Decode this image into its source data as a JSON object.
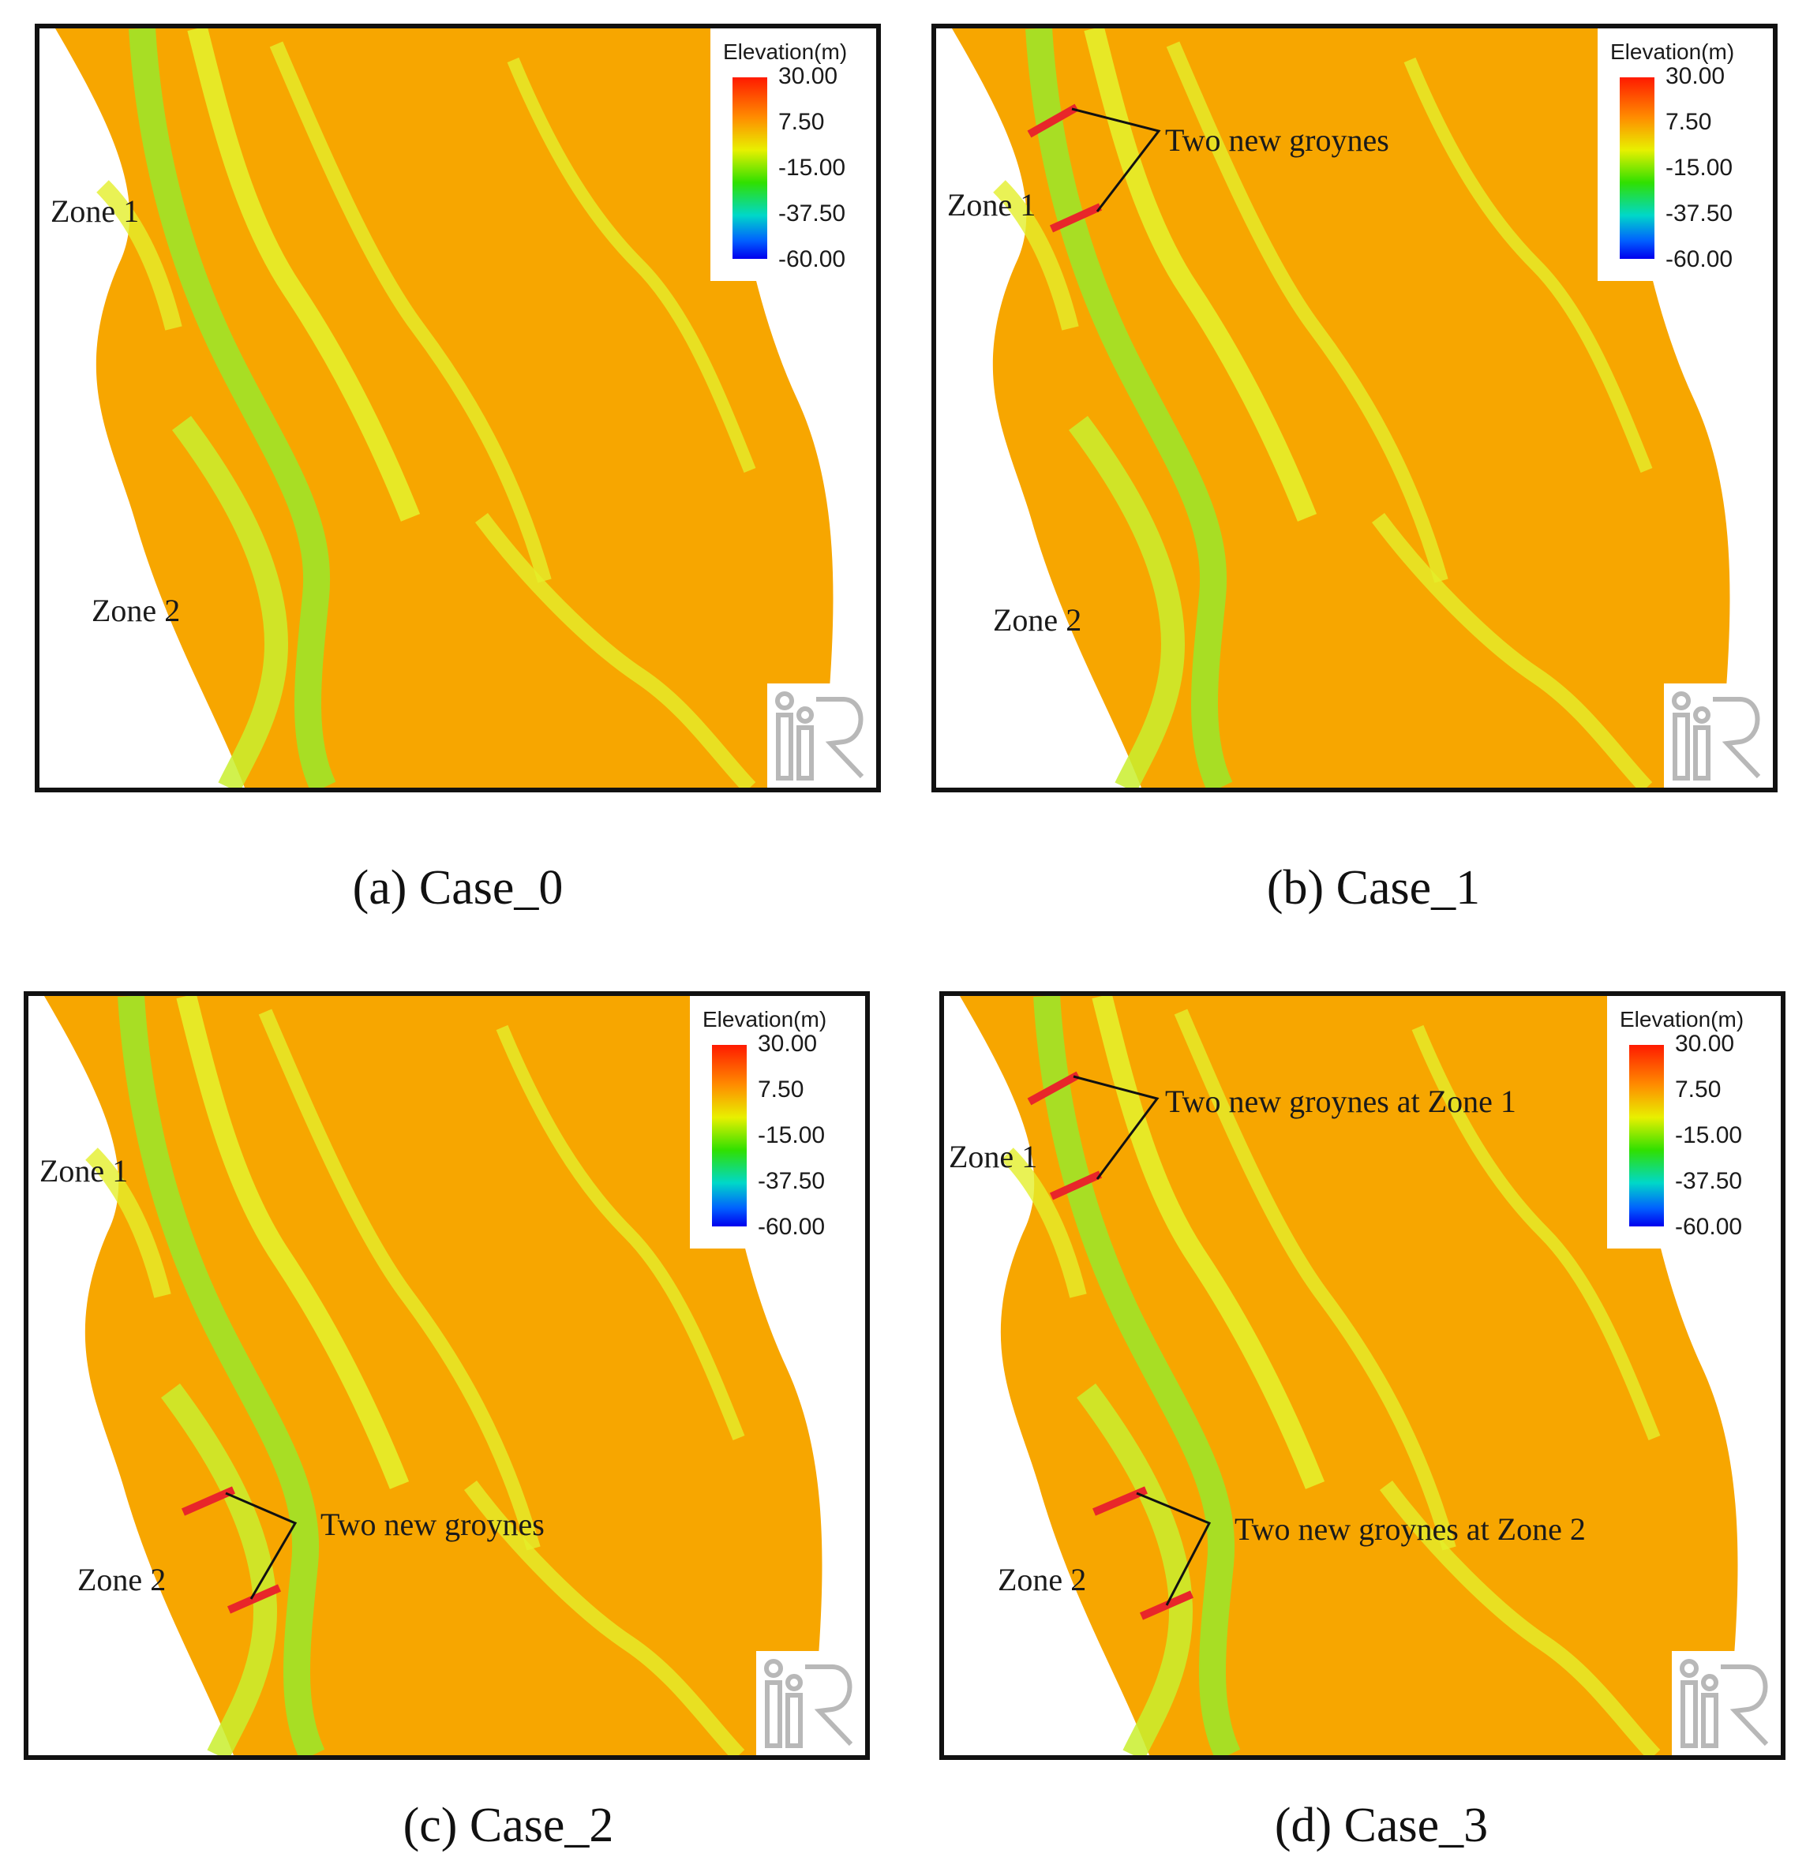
{
  "legend": {
    "title": "Elevation(m)",
    "ticks": [
      "30.00",
      "7.50",
      "-15.00",
      "-37.50",
      "-60.00"
    ],
    "colors": [
      "#ff1a00",
      "#ff8c00",
      "#e8f000",
      "#30e000",
      "#00d8c8",
      "#0000ee"
    ]
  },
  "panels": [
    {
      "caption": "(a) Case_0",
      "zone1": "Zone 1",
      "zone2": "Zone 2",
      "annotation1": "",
      "annotation2": ""
    },
    {
      "caption": "(b) Case_1",
      "zone1": "Zone 1",
      "zone2": "Zone 2",
      "annotation1": "Two new groynes",
      "annotation2": ""
    },
    {
      "caption": "(c) Case_2",
      "zone1": "Zone 1",
      "zone2": "Zone 2",
      "annotation1": "",
      "annotation2": "Two new groynes"
    },
    {
      "caption": "(d) Case_3",
      "zone1": "Zone 1",
      "zone2": "Zone 2",
      "annotation1": "Two new groynes at Zone 1",
      "annotation2": "Two new groynes at Zone 2"
    }
  ],
  "colors": {
    "bed": "#f7a600",
    "channel": "#9ae82a",
    "bar": "#e4ef2a",
    "groyne": "#e8262a",
    "frame": "#111111"
  },
  "logo_icon": "iric-logo"
}
